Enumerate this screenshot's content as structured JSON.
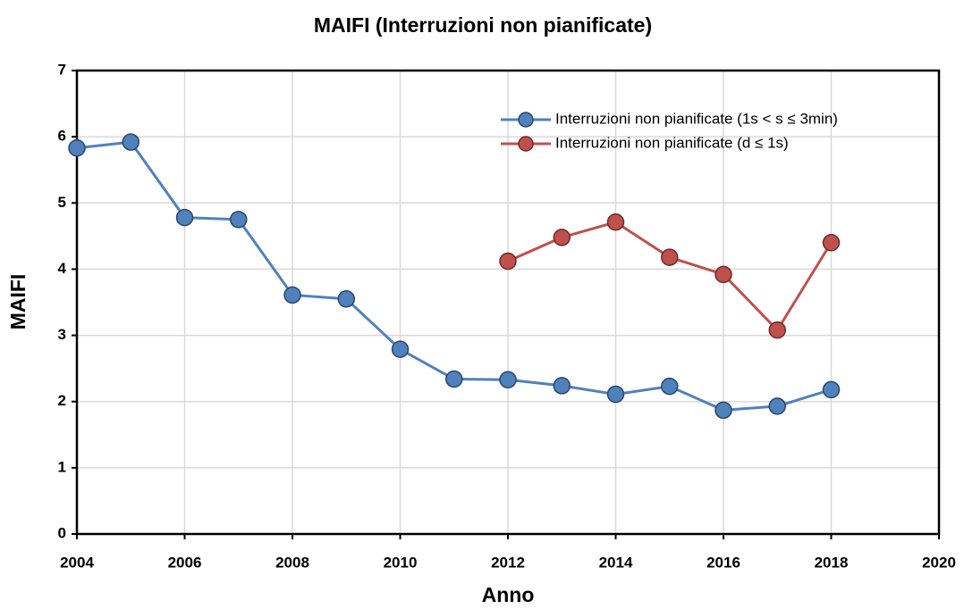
{
  "chart_data": {
    "type": "line",
    "title": "MAIFI (Interruzioni non pianificate)",
    "x_label": "Anno",
    "y_label": "MAIFI",
    "x": [
      2004,
      2005,
      2006,
      2007,
      2008,
      2009,
      2010,
      2011,
      2012,
      2013,
      2014,
      2015,
      2016,
      2017,
      2018
    ],
    "series": [
      {
        "name": "Interruzioni non pianificate (1s < s ≤ 3min)",
        "color": "#4f81bd",
        "values": [
          5.83,
          5.92,
          4.78,
          4.75,
          3.61,
          3.55,
          2.79,
          2.34,
          2.33,
          2.24,
          2.11,
          2.23,
          1.87,
          1.93,
          2.18
        ]
      },
      {
        "name": "Interruzioni non pianificate (d ≤ 1s)",
        "color": "#c0504d",
        "values": [
          null,
          null,
          null,
          null,
          null,
          null,
          null,
          null,
          4.12,
          4.48,
          4.71,
          4.18,
          3.92,
          3.08,
          4.4
        ]
      }
    ],
    "xlim": [
      2004,
      2020
    ],
    "xticks": [
      2004,
      2006,
      2008,
      2010,
      2012,
      2014,
      2016,
      2018,
      2020
    ],
    "ylim": [
      0,
      7
    ],
    "yticks": [
      0,
      1,
      2,
      3,
      4,
      5,
      6,
      7
    ],
    "grid": true,
    "legend": "upper right"
  }
}
